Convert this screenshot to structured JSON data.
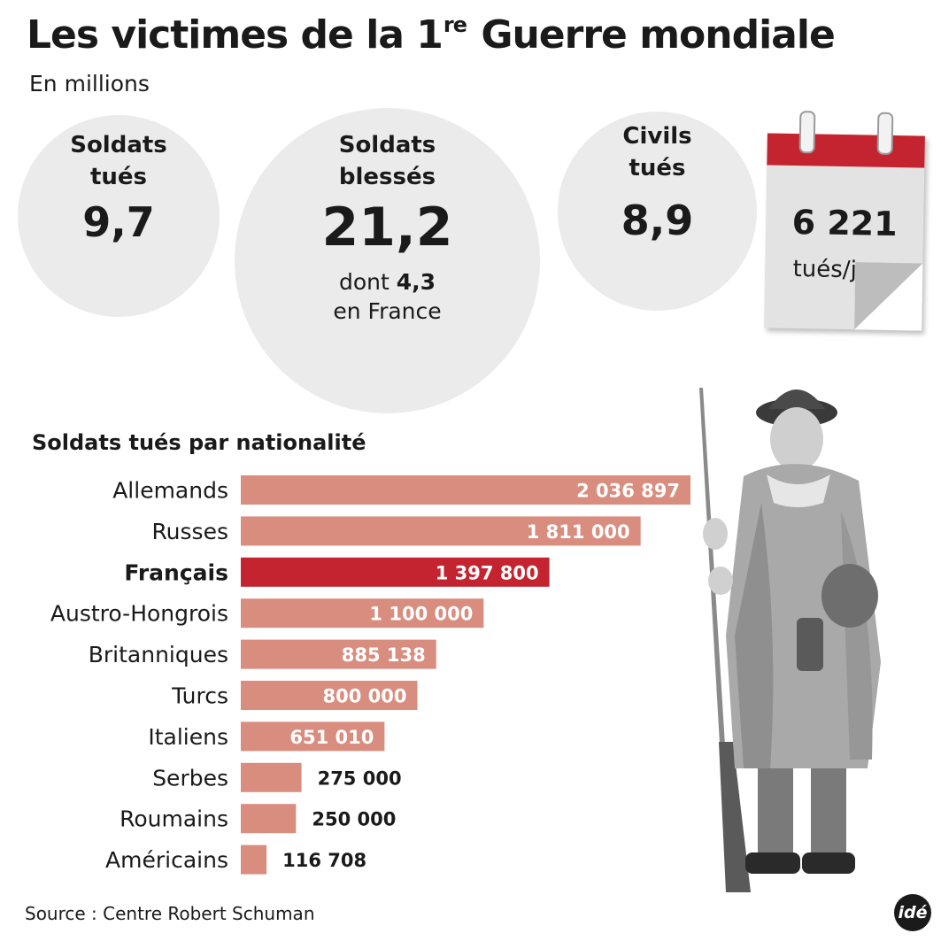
{
  "header": {
    "title_main": "Les victimes de la 1",
    "title_sup": "re",
    "title_end": " Guerre mondiale",
    "subtitle": "En millions"
  },
  "stats": {
    "killed": {
      "label_line1": "Soldats",
      "label_line2": "tués",
      "value": "9,7"
    },
    "wounded": {
      "label_line1": "Soldats",
      "label_line2": "blessés",
      "value": "21,2",
      "note_prefix": "dont ",
      "note_value": "4,3",
      "note_suffix": "en France"
    },
    "civilians": {
      "label_line1": "Civils",
      "label_line2": "tués",
      "value": "8,9"
    },
    "per_day": {
      "value": "6 221",
      "unit": "tués/jour"
    }
  },
  "colors": {
    "bar": "#d98d7e",
    "bar_highlight": "#c42430",
    "bubble": "#ebebeb",
    "calendar_bar": "#c42430"
  },
  "chart_data": {
    "type": "bar",
    "orientation": "horizontal",
    "title": "Soldats tués par nationalité",
    "categories": [
      "Allemands",
      "Russes",
      "Français",
      "Austro-Hongrois",
      "Britanniques",
      "Turcs",
      "Italiens",
      "Serbes",
      "Roumains",
      "Américains"
    ],
    "values": [
      2036897,
      1811000,
      1397800,
      1100000,
      885138,
      800000,
      651010,
      275000,
      250000,
      116708
    ],
    "value_labels": [
      "2 036 897",
      "1 811 000",
      "1 397 800",
      "1 100 000",
      "885 138",
      "800 000",
      "651 010",
      "275 000",
      "250 000",
      "116 708"
    ],
    "highlight": "Français",
    "xlim": [
      0,
      2036897
    ],
    "grid": false
  },
  "footer": {
    "source": "Source : Centre Robert Schuman",
    "logo": "idé"
  },
  "illustration": {
    "icon": "soldier-illustration"
  }
}
